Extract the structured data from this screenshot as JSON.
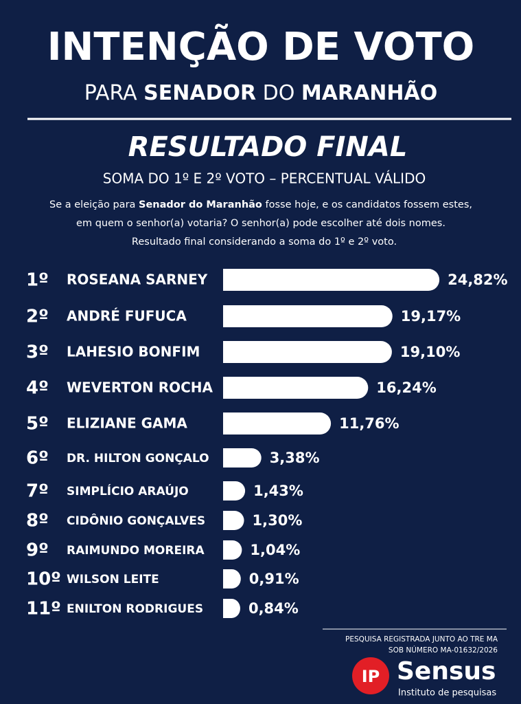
{
  "header": {
    "title": "INTENÇÃO DE VOTO",
    "subtitle_parts": [
      "PARA ",
      "SENADOR",
      " DO ",
      "MARANHÃO"
    ]
  },
  "chart_data": {
    "type": "bar",
    "orientation": "horizontal",
    "title": "RESULTADO FINAL",
    "subtitle": "SOMA DO 1º E 2º VOTO – PERCENTUAL VÁLIDO",
    "note_parts": [
      "Se a eleição para ",
      "Senador do Maranhão",
      " fosse hoje, e os candidatos fossem estes,"
    ],
    "note_lines": [
      "em quem o senhor(a) votaria? O senhor(a) pode escolher até dois nomes.",
      "Resultado final considerando a soma do 1º e 2º voto."
    ],
    "ranks": [
      "1º",
      "2º",
      "3º",
      "4º",
      "5º",
      "6º",
      "7º",
      "8º",
      "9º",
      "10º",
      "11º"
    ],
    "categories": [
      "ROSEANA SARNEY",
      "ANDRÉ FUFUCA",
      "LAHESIO BONFIM",
      "WEVERTON ROCHA",
      "ELIZIANE GAMA",
      "DR. HILTON GONÇALO",
      "SIMPLÍCIO ARAÚJO",
      "CIDÔNIO GONÇALVES",
      "RAIMUNDO MOREIRA",
      "WILSON LEITE",
      "ENILTON RODRIGUES"
    ],
    "values": [
      24.82,
      19.17,
      19.1,
      16.24,
      11.76,
      3.38,
      1.43,
      1.3,
      1.04,
      0.91,
      0.84
    ],
    "value_labels": [
      "24,82%",
      "19,17%",
      "19,10%",
      "16,24%",
      "11,76%",
      "3,38%",
      "1,43%",
      "1,30%",
      "1,04%",
      "0,91%",
      "0,84%"
    ],
    "color": "#ffffff"
  },
  "footer": {
    "registration": [
      "PESQUISA REGISTRADA JUNTO AO TRE MA",
      "SOB NÚMERO MA-01632/2026"
    ],
    "logo_mark": "IP",
    "logo_name": "Sensus",
    "logo_tagline": "Instituto de pesquisas"
  }
}
